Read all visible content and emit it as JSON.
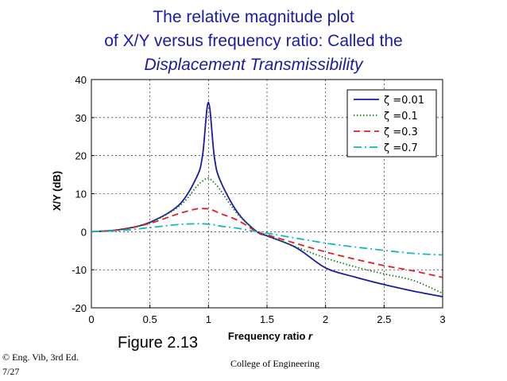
{
  "slide": {
    "title_line1": "The relative magnitude plot",
    "title_line2": "of X/Y versus frequency ratio: Called the",
    "title_line3": "Displacement Transmissibility",
    "figure_label": "Figure 2.13",
    "footer_left_line1": "© Eng. Vib, 3rd Ed.",
    "footer_left_line2": "7/27",
    "footer_center": "College of Engineering"
  },
  "chart_data": {
    "type": "line",
    "title": "",
    "xlabel": "Frequency ratio r",
    "ylabel": "X/Y (dB)",
    "xlim": [
      0,
      3
    ],
    "ylim": [
      -20,
      40
    ],
    "xticks": [
      0,
      0.5,
      1,
      1.5,
      2,
      2.5,
      3
    ],
    "xtick_labels": [
      "0",
      "0.5",
      "1",
      "1.5",
      "2",
      "2.5",
      "3"
    ],
    "yticks": [
      -20,
      -10,
      0,
      10,
      20,
      30,
      40
    ],
    "ytick_labels": [
      "-20",
      "-10",
      "0",
      "10",
      "20",
      "30",
      "40"
    ],
    "grid": true,
    "legend_position": "top-right",
    "x": [
      0,
      0.25,
      0.5,
      0.75,
      0.9,
      0.95,
      1.0,
      1.05,
      1.1,
      1.25,
      1.414,
      1.5,
      1.75,
      2.0,
      2.25,
      2.5,
      2.75,
      3.0
    ],
    "series": [
      {
        "name": "ζ =0.01",
        "color": "#1a1aa8",
        "dash": "solid",
        "values": [
          0,
          0.6,
          2.5,
          7.1,
          14.4,
          20.2,
          34.0,
          19.7,
          13.5,
          5.0,
          0.0,
          -1.1,
          -4.2,
          -9.5,
          -11.9,
          -13.9,
          -15.6,
          -17.1
        ]
      },
      {
        "name": "ζ =0.1",
        "color": "#1a7a1a",
        "dash": "dotted",
        "values": [
          0,
          0.6,
          2.4,
          6.7,
          11.9,
          13.3,
          14.1,
          12.8,
          11.0,
          4.6,
          0.0,
          -1.0,
          -4.0,
          -6.9,
          -9.2,
          -11.1,
          -12.8,
          -16.2
        ]
      },
      {
        "name": "ζ =0.3",
        "color": "#e02020",
        "dash": "dashed",
        "values": [
          0,
          0.5,
          2.2,
          4.8,
          6.0,
          6.1,
          6.0,
          5.5,
          4.8,
          3.0,
          0.0,
          -0.8,
          -3.1,
          -5.3,
          -7.2,
          -8.9,
          -10.3,
          -12.0
        ]
      },
      {
        "name": "ζ =0.7",
        "color": "#10b8c0",
        "dash": "dashdot",
        "values": [
          0,
          0.3,
          1.1,
          1.9,
          2.1,
          2.1,
          2.0,
          1.8,
          1.5,
          0.9,
          0.0,
          -0.4,
          -1.7,
          -3.0,
          -4.0,
          -4.9,
          -5.7,
          -6.1
        ]
      }
    ]
  }
}
